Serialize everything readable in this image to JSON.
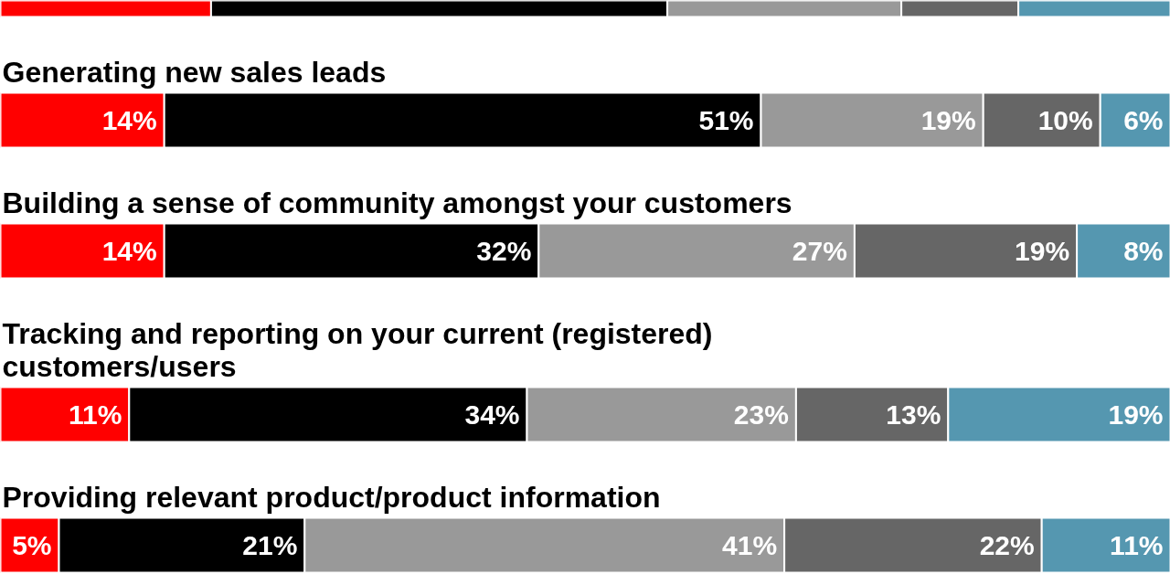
{
  "chart_data": {
    "type": "bar",
    "orientation": "horizontal",
    "stacked": true,
    "categories": [
      null,
      "Generating new sales leads",
      "Building a sense of community amongst your customers",
      "Tracking and reporting on your current (registered) customers/users",
      "Providing relevant product/product information"
    ],
    "series": [
      {
        "color": "#ff0000",
        "values": [
          18,
          14,
          14,
          11,
          5
        ],
        "value_labels": [
          null,
          "14%",
          "14%",
          "11%",
          "5%"
        ]
      },
      {
        "color": "#000000",
        "values": [
          39,
          51,
          32,
          34,
          21
        ],
        "value_labels": [
          null,
          "51%",
          "32%",
          "34%",
          "21%"
        ]
      },
      {
        "color": "#999999",
        "values": [
          20,
          19,
          27,
          23,
          41
        ],
        "value_labels": [
          null,
          "19%",
          "27%",
          "23%",
          "41%"
        ]
      },
      {
        "color": "#666666",
        "values": [
          10,
          10,
          19,
          13,
          22
        ],
        "value_labels": [
          null,
          "10%",
          "19%",
          "13%",
          "22%"
        ]
      },
      {
        "color": "#5597b0",
        "values": [
          13,
          6,
          8,
          19,
          11
        ],
        "value_labels": [
          null,
          "6%",
          "8%",
          "19%",
          "11%"
        ]
      }
    ],
    "xlim": [
      0,
      100
    ],
    "tick_labels": false,
    "grid": false
  }
}
